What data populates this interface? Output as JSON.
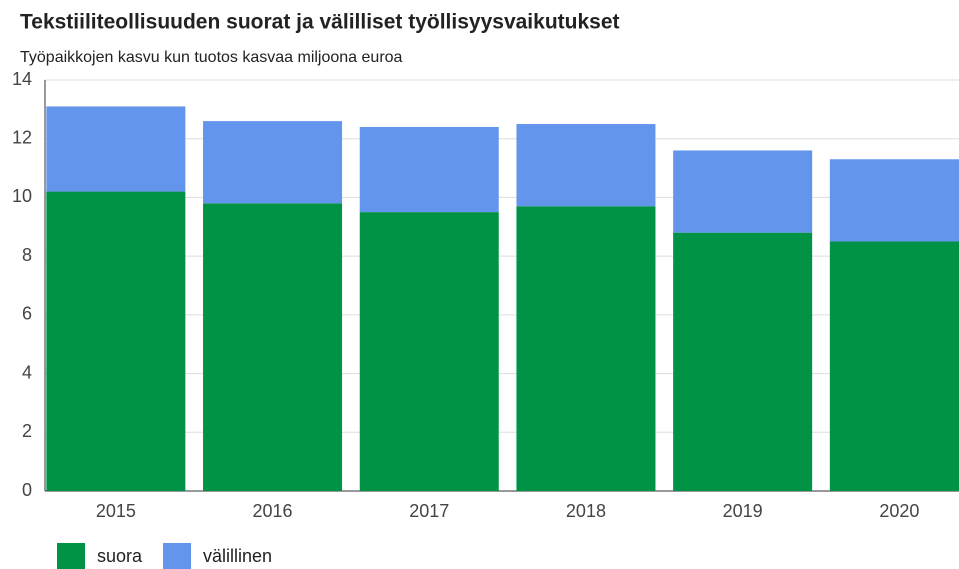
{
  "chart_data": {
    "type": "stacked_bar",
    "title": "Tekstiiliteollisuuden suorat ja välilliset työllisyysvaikutukset",
    "subtitle": "Työpaikkojen kasvu kun tuotos kasvaa miljoona euroa",
    "categories": [
      "2015",
      "2016",
      "2017",
      "2018",
      "2019",
      "2020"
    ],
    "series": [
      {
        "name": "suora",
        "color": "#009245",
        "values": [
          10.2,
          9.8,
          9.5,
          9.7,
          8.8,
          8.5
        ]
      },
      {
        "name": "välillinen",
        "color": "#6495ed",
        "values": [
          2.9,
          2.8,
          2.9,
          2.8,
          2.8,
          2.8
        ]
      }
    ],
    "ylim": [
      0,
      14
    ],
    "yticks": [
      0,
      2,
      4,
      6,
      8,
      10,
      12,
      14
    ],
    "grid": true
  }
}
